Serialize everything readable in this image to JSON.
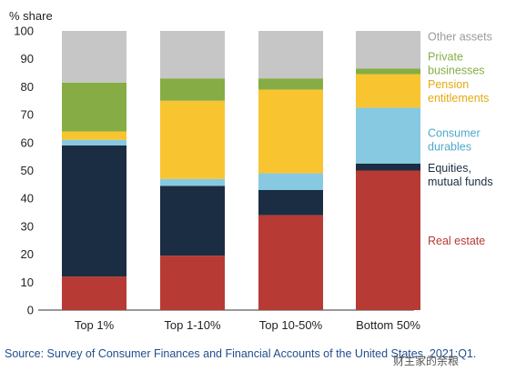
{
  "chart_data": {
    "type": "bar",
    "stacked": true,
    "ylabel": "% share",
    "ylim": [
      0,
      100
    ],
    "yticks": [
      0,
      10,
      20,
      30,
      40,
      50,
      60,
      70,
      80,
      90,
      100
    ],
    "grid": false,
    "legend_position": "right",
    "categories": [
      "Top 1%",
      "Top 1-10%",
      "Top 10-50%",
      "Bottom 50%"
    ],
    "series": [
      {
        "name": "Real estate",
        "label_lines": [
          "Real estate"
        ],
        "color": "#b83a34",
        "values": [
          12,
          19.5,
          34,
          50
        ]
      },
      {
        "name": "Equities, mutual funds",
        "label_lines": [
          "Equities,",
          "mutual funds"
        ],
        "color": "#1b2d42",
        "values": [
          47,
          25,
          9,
          2.5
        ]
      },
      {
        "name": "Consumer durables",
        "label_lines": [
          "Consumer",
          "durables"
        ],
        "color": "#86c9e1",
        "values": [
          2,
          2.5,
          6,
          20
        ]
      },
      {
        "name": "Pension entitlements",
        "label_lines": [
          "Pension",
          "entitlements"
        ],
        "color": "#f8c430",
        "values": [
          3,
          28,
          30,
          12
        ]
      },
      {
        "name": "Private businesses",
        "label_lines": [
          "Private",
          "businesses"
        ],
        "color": "#86ad45",
        "values": [
          17.5,
          8,
          4,
          2
        ]
      },
      {
        "name": "Other assets",
        "label_lines": [
          "Other assets"
        ],
        "color": "#c6c6c6",
        "values": [
          18.5,
          17,
          17,
          13.5
        ]
      }
    ]
  },
  "source": "Source: Survey of Consumer Finances and Financial Accounts of the United States, 2021:Q1.",
  "watermark": "财主家的余粮"
}
